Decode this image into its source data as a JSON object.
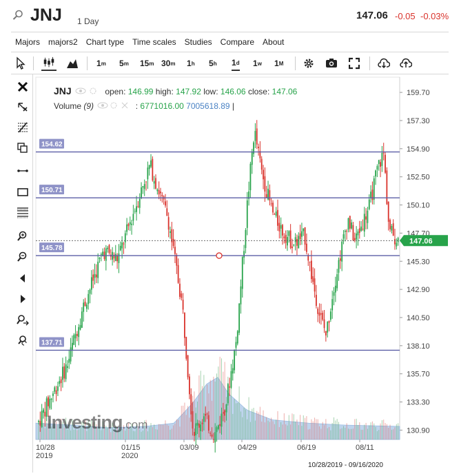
{
  "header": {
    "symbol": "JNJ",
    "period": "1 Day",
    "last_price": "147.06",
    "change": "-0.05",
    "change_pct": "-0.03%"
  },
  "menu": [
    "Majors",
    "majors2",
    "Chart type",
    "Time scales",
    "Studies",
    "Compare",
    "About"
  ],
  "toolbar": {
    "timeframes": [
      {
        "base": "1",
        "unit": "m"
      },
      {
        "base": "5",
        "unit": "m"
      },
      {
        "base": "15",
        "unit": "m"
      },
      {
        "base": "30",
        "unit": "m"
      },
      {
        "base": "1",
        "unit": "h"
      },
      {
        "base": "5",
        "unit": "h"
      },
      {
        "base": "1",
        "unit": "d"
      },
      {
        "base": "1",
        "unit": "w"
      },
      {
        "base": "1",
        "unit": "M"
      }
    ],
    "active_timeframe": "1d"
  },
  "left_tools": [
    "close-icon",
    "delete-drawings-icon",
    "fibonacci-icon",
    "copy-icon",
    "trendline-icon",
    "rectangle-icon",
    "horizontal-lines-icon",
    "zoom-in-icon",
    "zoom-out-icon",
    "scroll-left-icon",
    "scroll-right-icon",
    "zoom-area-icon",
    "reset-zoom-icon"
  ],
  "legend": {
    "symbol": "JNJ",
    "open_label": "open:",
    "open": "146.99",
    "high_label": "high:",
    "high": "147.92",
    "low_label": "low:",
    "low": "146.06",
    "close_label": "close:",
    "close": "147.06",
    "volume_label": "Volume",
    "volume_param": "(9)",
    "volume_value": "6771016.00",
    "volume_ma": "7005618.89"
  },
  "date_range": "10/28/2019 - 09/16/2020",
  "watermark": {
    "brand": "Investing",
    "suffix": ".com"
  },
  "colors": {
    "up": "#27a34a",
    "down": "#d9322b",
    "hline": "#5b5ea6",
    "hline_label_bg": "#8f93c8",
    "last_price_bg": "#27a34a",
    "volume_fill": "#a9c6e8"
  },
  "chart_data": {
    "type": "candlestick",
    "y_ticks": [
      "159.70",
      "157.30",
      "154.90",
      "152.50",
      "150.10",
      "147.70",
      "145.30",
      "142.90",
      "140.50",
      "138.10",
      "135.70",
      "133.30",
      "130.90"
    ],
    "x_ticks": [
      {
        "label": "10/28",
        "sub": "2019"
      },
      {
        "label": "01/15",
        "sub": "2020"
      },
      {
        "label": "03/09",
        "sub": ""
      },
      {
        "label": "04/29",
        "sub": ""
      },
      {
        "label": "06/19",
        "sub": ""
      },
      {
        "label": "08/11",
        "sub": ""
      }
    ],
    "ylim": [
      130.1,
      161.0
    ],
    "horizontal_lines": [
      {
        "label": "154.62",
        "value": 154.62
      },
      {
        "label": "150.71",
        "value": 150.71
      },
      {
        "label": "145.78",
        "value": 145.78
      },
      {
        "label": "137.71",
        "value": 137.71
      }
    ],
    "last_price": {
      "label": "147.06",
      "value": 147.06
    },
    "series": [
      {
        "name": "JNJ",
        "trend": [
          [
            0,
            131.6
          ],
          [
            0.08,
            136.5
          ],
          [
            0.12,
            141.0
          ],
          [
            0.18,
            146.2
          ],
          [
            0.22,
            145.5
          ],
          [
            0.27,
            150.0
          ],
          [
            0.31,
            153.5
          ],
          [
            0.36,
            149.0
          ],
          [
            0.4,
            141.5
          ],
          [
            0.43,
            130.8
          ],
          [
            0.46,
            132.0
          ],
          [
            0.49,
            130.5
          ],
          [
            0.52,
            133.0
          ],
          [
            0.55,
            138.5
          ],
          [
            0.58,
            150.0
          ],
          [
            0.6,
            156.5
          ],
          [
            0.62,
            153.0
          ],
          [
            0.65,
            149.5
          ],
          [
            0.68,
            147.8
          ],
          [
            0.71,
            146.8
          ],
          [
            0.74,
            147.5
          ],
          [
            0.76,
            144.0
          ],
          [
            0.78,
            141.0
          ],
          [
            0.8,
            139.0
          ],
          [
            0.82,
            143.0
          ],
          [
            0.84,
            146.0
          ],
          [
            0.86,
            149.0
          ],
          [
            0.88,
            147.0
          ],
          [
            0.9,
            148.5
          ],
          [
            0.92,
            150.0
          ],
          [
            0.945,
            153.5
          ],
          [
            0.96,
            154.5
          ],
          [
            0.975,
            148.0
          ],
          [
            1.0,
            147.06
          ]
        ]
      },
      {
        "name": "Volume",
        "trend": [
          [
            0,
            0.25
          ],
          [
            0.1,
            0.22
          ],
          [
            0.2,
            0.18
          ],
          [
            0.3,
            0.2
          ],
          [
            0.38,
            0.25
          ],
          [
            0.43,
            0.55
          ],
          [
            0.47,
            0.85
          ],
          [
            0.5,
            0.95
          ],
          [
            0.53,
            0.7
          ],
          [
            0.58,
            0.45
          ],
          [
            0.65,
            0.3
          ],
          [
            0.75,
            0.25
          ],
          [
            0.85,
            0.22
          ],
          [
            1.0,
            0.2
          ]
        ]
      }
    ]
  }
}
